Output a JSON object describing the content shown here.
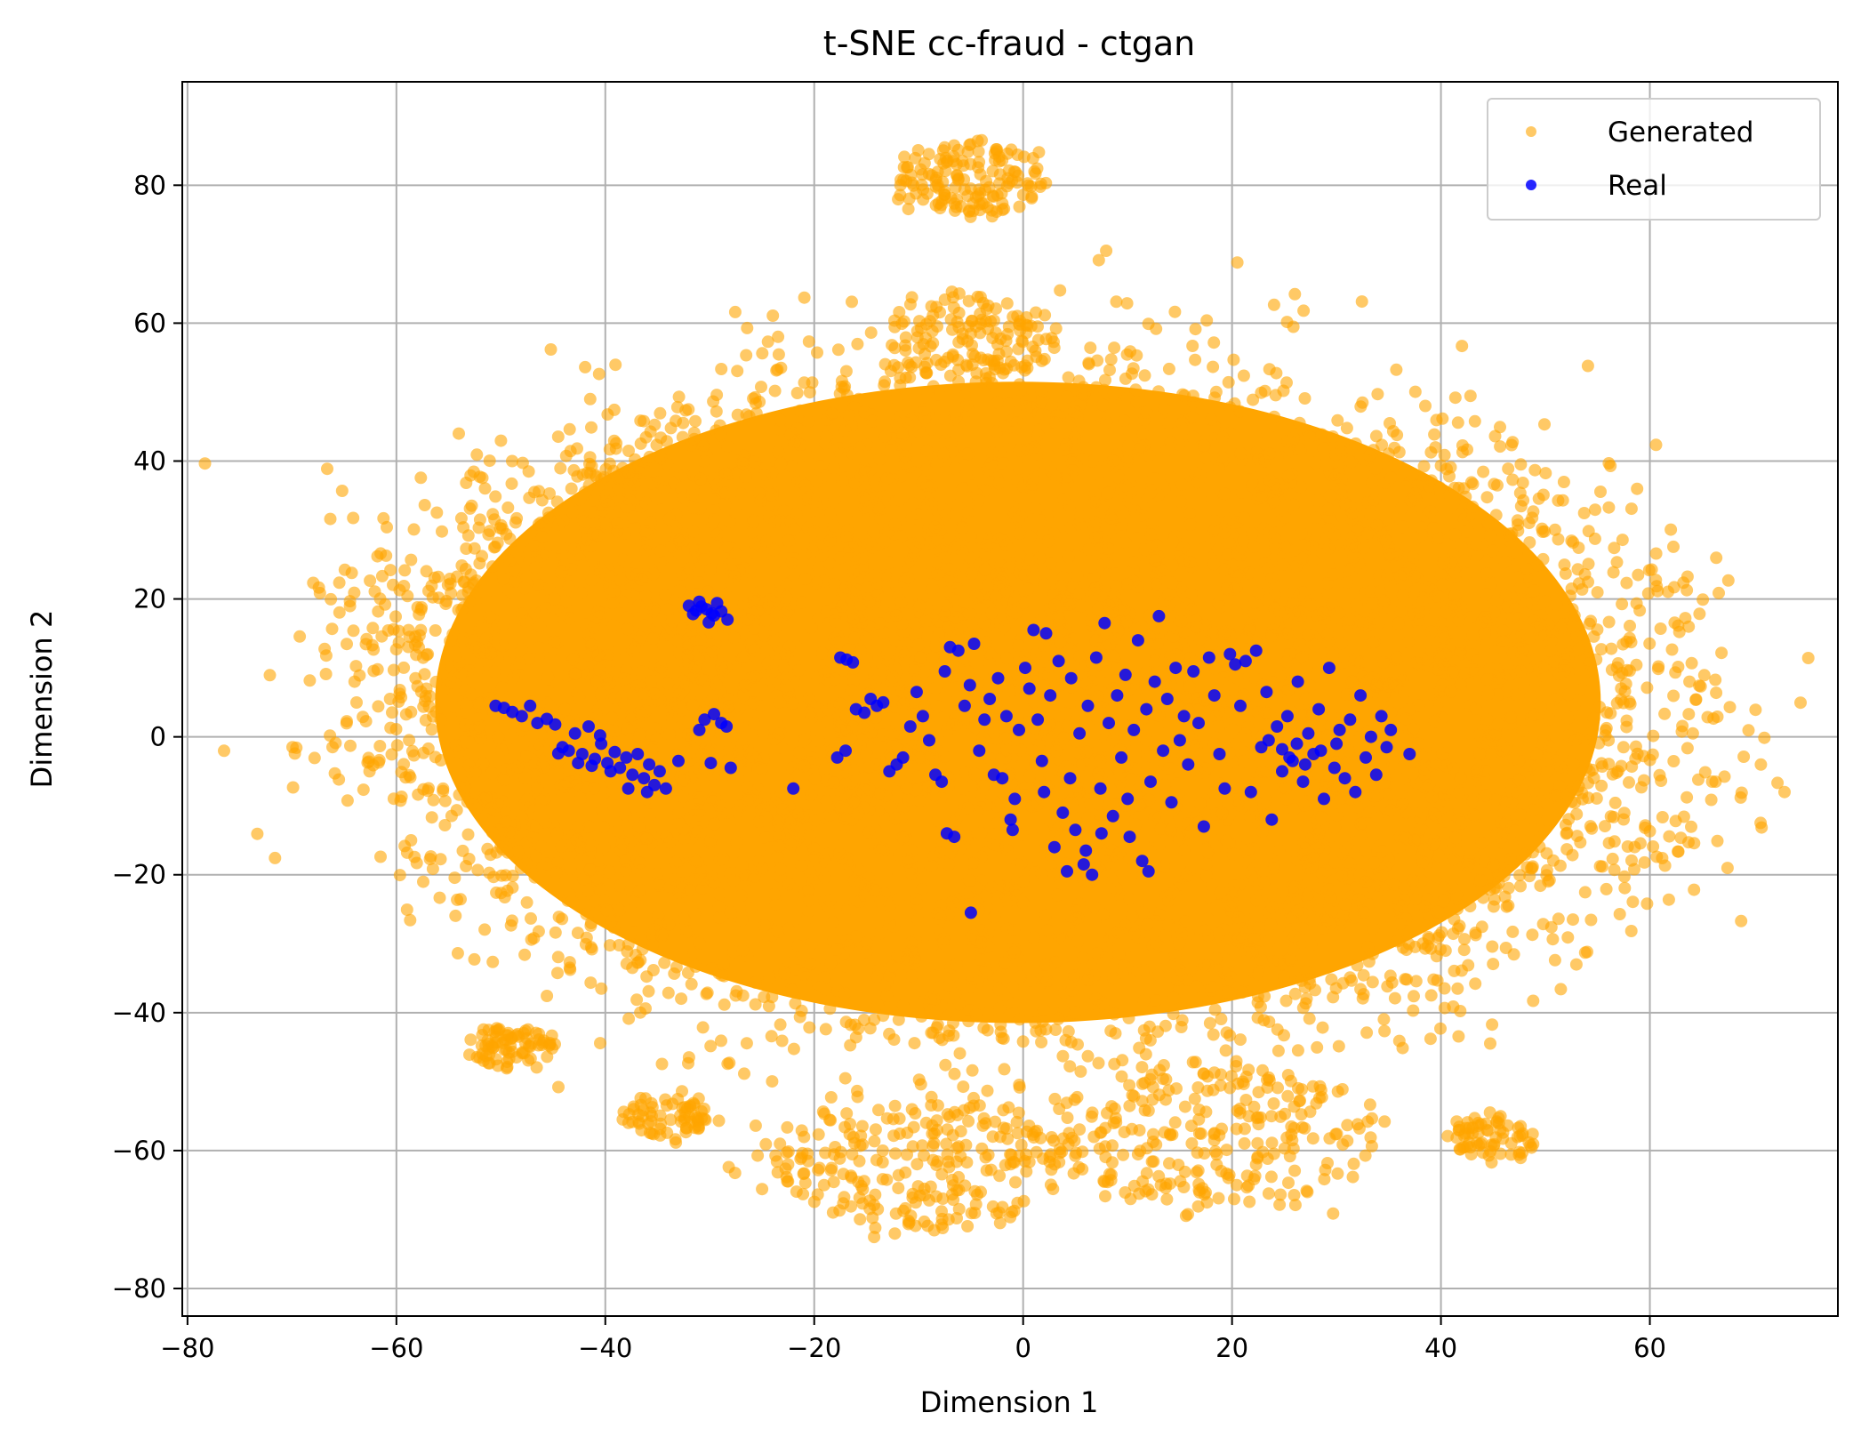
{
  "chart_data": {
    "type": "scatter",
    "title": "t-SNE cc-fraud - ctgan",
    "xlabel": "Dimension 1",
    "ylabel": "Dimension 2",
    "xlim": [
      -80.5,
      78
    ],
    "ylim": [
      -84,
      95
    ],
    "xticks": [
      -80,
      -60,
      -40,
      -20,
      0,
      20,
      40,
      60
    ],
    "yticks": [
      -80,
      -60,
      -40,
      -20,
      0,
      20,
      40,
      60,
      80
    ],
    "xtick_labels": [
      "−80",
      "−60",
      "−40",
      "−20",
      "0",
      "20",
      "40",
      "60"
    ],
    "ytick_labels": [
      "−80",
      "−60",
      "−40",
      "−20",
      "0",
      "20",
      "40",
      "60",
      "80"
    ],
    "grid": true,
    "legend_position": "top-right",
    "series": [
      {
        "name": "Generated",
        "color": "#ffa500",
        "note_shape": "dense cloud",
        "clusters": [
          {
            "cx": -0.5,
            "cy": 5,
            "rx": 60,
            "ry": 50,
            "n": 3500
          },
          {
            "cx": -30,
            "cy": 10,
            "rx": 35,
            "ry": 30,
            "n": 700
          },
          {
            "cx": 35,
            "cy": 0,
            "rx": 33,
            "ry": 36,
            "n": 700
          },
          {
            "cx": -5,
            "cy": 58,
            "rx": 7,
            "ry": 6,
            "n": 120
          },
          {
            "cx": -5,
            "cy": 81,
            "rx": 7,
            "ry": 5,
            "n": 150
          },
          {
            "cx": -49,
            "cy": -45,
            "rx": 4,
            "ry": 3,
            "n": 80
          },
          {
            "cx": -34,
            "cy": -55,
            "rx": 4,
            "ry": 3,
            "n": 70
          },
          {
            "cx": 45,
            "cy": -58,
            "rx": 4,
            "ry": 3,
            "n": 70
          },
          {
            "cx": -10,
            "cy": -62,
            "rx": 14,
            "ry": 9,
            "n": 250
          },
          {
            "cx": 18,
            "cy": -58,
            "rx": 16,
            "ry": 10,
            "n": 250
          }
        ]
      },
      {
        "name": "Real",
        "color": "#0000ff",
        "points": [
          [
            -50.5,
            4.5
          ],
          [
            -49.7,
            4.2
          ],
          [
            -48.9,
            3.6
          ],
          [
            -48.0,
            3.0
          ],
          [
            -47.2,
            4.5
          ],
          [
            -46.5,
            2.0
          ],
          [
            -45.6,
            2.6
          ],
          [
            -44.8,
            1.8
          ],
          [
            -44.1,
            -1.5
          ],
          [
            -43.5,
            -2.0
          ],
          [
            -42.9,
            0.5
          ],
          [
            -42.2,
            -2.5
          ],
          [
            -41.6,
            1.5
          ],
          [
            -41.0,
            -3.2
          ],
          [
            -40.4,
            -1.0
          ],
          [
            -39.8,
            -3.8
          ],
          [
            -39.1,
            -2.2
          ],
          [
            -38.6,
            -4.5
          ],
          [
            -38.0,
            -3.0
          ],
          [
            -37.4,
            -5.5
          ],
          [
            -36.9,
            -2.5
          ],
          [
            -36.3,
            -6.0
          ],
          [
            -35.8,
            -4.0
          ],
          [
            -35.3,
            -7.0
          ],
          [
            -34.8,
            -5.0
          ],
          [
            -40.5,
            0.2
          ],
          [
            -42.6,
            -3.8
          ],
          [
            -37.8,
            -7.5
          ],
          [
            -36.0,
            -8.0
          ],
          [
            -34.2,
            -7.5
          ],
          [
            -44.5,
            -2.4
          ],
          [
            -41.3,
            -4.2
          ],
          [
            -39.5,
            -5.0
          ],
          [
            -32.0,
            19.0
          ],
          [
            -31.0,
            19.6
          ],
          [
            -30.3,
            18.5
          ],
          [
            -29.6,
            17.6
          ],
          [
            -28.9,
            18.2
          ],
          [
            -31.6,
            17.8
          ],
          [
            -30.1,
            16.6
          ],
          [
            -29.3,
            19.4
          ],
          [
            -28.3,
            17.0
          ],
          [
            -30.8,
            18.9
          ],
          [
            -29.8,
            17.9
          ],
          [
            -31.3,
            18.3
          ],
          [
            -30.5,
            2.5
          ],
          [
            -29.6,
            3.3
          ],
          [
            -28.9,
            2.0
          ],
          [
            -28.4,
            1.5
          ],
          [
            -29.9,
            -3.8
          ],
          [
            -28.0,
            -4.5
          ],
          [
            -33.0,
            -3.5
          ],
          [
            -31.0,
            1.0
          ],
          [
            -22.0,
            -7.5
          ],
          [
            -17.5,
            11.5
          ],
          [
            -16.9,
            11.2
          ],
          [
            -16.3,
            10.8
          ],
          [
            -17.8,
            -3.0
          ],
          [
            -17.0,
            -2.0
          ],
          [
            -16.0,
            4.0
          ],
          [
            -15.2,
            3.5
          ],
          [
            -14.6,
            5.5
          ],
          [
            -14.0,
            4.5
          ],
          [
            -13.4,
            5.0
          ],
          [
            -12.8,
            -5.0
          ],
          [
            -12.1,
            -4.0
          ],
          [
            -11.5,
            -3.0
          ],
          [
            -10.8,
            1.5
          ],
          [
            -10.2,
            6.5
          ],
          [
            -9.6,
            3.0
          ],
          [
            -9.0,
            -0.5
          ],
          [
            -8.4,
            -5.5
          ],
          [
            -7.8,
            -6.5
          ],
          [
            -7.5,
            9.5
          ],
          [
            -7.0,
            13.0
          ],
          [
            -6.6,
            -14.5
          ],
          [
            -7.3,
            -14.0
          ],
          [
            -6.2,
            12.5
          ],
          [
            -5.6,
            4.5
          ],
          [
            -5.1,
            7.5
          ],
          [
            -4.7,
            13.5
          ],
          [
            -4.2,
            -2.0
          ],
          [
            -3.7,
            2.5
          ],
          [
            -3.2,
            5.5
          ],
          [
            -2.8,
            -5.5
          ],
          [
            -2.4,
            8.5
          ],
          [
            -2.0,
            -6.0
          ],
          [
            -1.6,
            3.0
          ],
          [
            -1.2,
            -12.0
          ],
          [
            -0.8,
            -9.0
          ],
          [
            -0.4,
            1.0
          ],
          [
            -5.0,
            -25.5
          ],
          [
            0.2,
            10.0
          ],
          [
            0.6,
            7.0
          ],
          [
            1.0,
            15.5
          ],
          [
            1.4,
            2.5
          ],
          [
            1.8,
            -3.5
          ],
          [
            2.2,
            15.0
          ],
          [
            2.6,
            6.0
          ],
          [
            3.0,
            -16.0
          ],
          [
            3.4,
            11.0
          ],
          [
            3.8,
            -11.0
          ],
          [
            4.2,
            -19.5
          ],
          [
            4.6,
            8.5
          ],
          [
            5.0,
            -13.5
          ],
          [
            5.4,
            0.5
          ],
          [
            5.8,
            -18.5
          ],
          [
            6.2,
            4.5
          ],
          [
            6.6,
            -20.0
          ],
          [
            7.0,
            11.5
          ],
          [
            7.4,
            -7.5
          ],
          [
            7.8,
            16.5
          ],
          [
            8.2,
            2.0
          ],
          [
            8.6,
            -11.5
          ],
          [
            9.0,
            6.0
          ],
          [
            9.4,
            -3.0
          ],
          [
            9.8,
            9.0
          ],
          [
            10.2,
            -14.5
          ],
          [
            10.6,
            1.0
          ],
          [
            11.0,
            14.0
          ],
          [
            11.4,
            -18.0
          ],
          [
            11.8,
            4.0
          ],
          [
            12.2,
            -6.5
          ],
          [
            12.6,
            8.0
          ],
          [
            13.0,
            17.5
          ],
          [
            13.4,
            -2.0
          ],
          [
            13.8,
            5.5
          ],
          [
            14.2,
            -9.5
          ],
          [
            14.6,
            10.0
          ],
          [
            15.0,
            -0.5
          ],
          [
            15.4,
            3.0
          ],
          [
            15.8,
            -4.0
          ],
          [
            16.3,
            9.5
          ],
          [
            16.8,
            2.0
          ],
          [
            17.3,
            -13.0
          ],
          [
            17.8,
            11.5
          ],
          [
            18.3,
            6.0
          ],
          [
            18.8,
            -2.5
          ],
          [
            19.3,
            -7.5
          ],
          [
            19.8,
            12.0
          ],
          [
            20.3,
            10.5
          ],
          [
            20.8,
            4.5
          ],
          [
            21.3,
            11.0
          ],
          [
            21.8,
            -8.0
          ],
          [
            22.3,
            12.5
          ],
          [
            22.8,
            -1.5
          ],
          [
            23.3,
            6.5
          ],
          [
            23.8,
            -12.0
          ],
          [
            24.3,
            1.5
          ],
          [
            24.8,
            -5.0
          ],
          [
            25.3,
            3.0
          ],
          [
            25.8,
            -3.5
          ],
          [
            26.3,
            8.0
          ],
          [
            26.8,
            -6.5
          ],
          [
            27.3,
            0.5
          ],
          [
            27.8,
            -2.5
          ],
          [
            28.3,
            4.0
          ],
          [
            28.8,
            -9.0
          ],
          [
            29.3,
            10.0
          ],
          [
            29.8,
            -4.5
          ],
          [
            30.3,
            1.0
          ],
          [
            30.8,
            -6.0
          ],
          [
            31.3,
            2.5
          ],
          [
            31.8,
            -8.0
          ],
          [
            32.3,
            6.0
          ],
          [
            32.8,
            -3.0
          ],
          [
            33.3,
            0.0
          ],
          [
            33.8,
            -5.5
          ],
          [
            34.3,
            3.0
          ],
          [
            34.8,
            -1.5
          ],
          [
            35.2,
            1.0
          ],
          [
            37.0,
            -2.5
          ],
          [
            23.5,
            -0.5
          ],
          [
            24.8,
            -1.8
          ],
          [
            25.5,
            -3.0
          ],
          [
            26.2,
            -1.0
          ],
          [
            27.0,
            -4.0
          ],
          [
            28.5,
            -2.0
          ],
          [
            30.0,
            -1.0
          ],
          [
            4.5,
            -6.0
          ],
          [
            6.0,
            -16.5
          ],
          [
            7.5,
            -14.0
          ],
          [
            10.0,
            -9.0
          ],
          [
            2.0,
            -8.0
          ],
          [
            -1.0,
            -13.5
          ],
          [
            12.0,
            -19.5
          ]
        ]
      }
    ]
  }
}
